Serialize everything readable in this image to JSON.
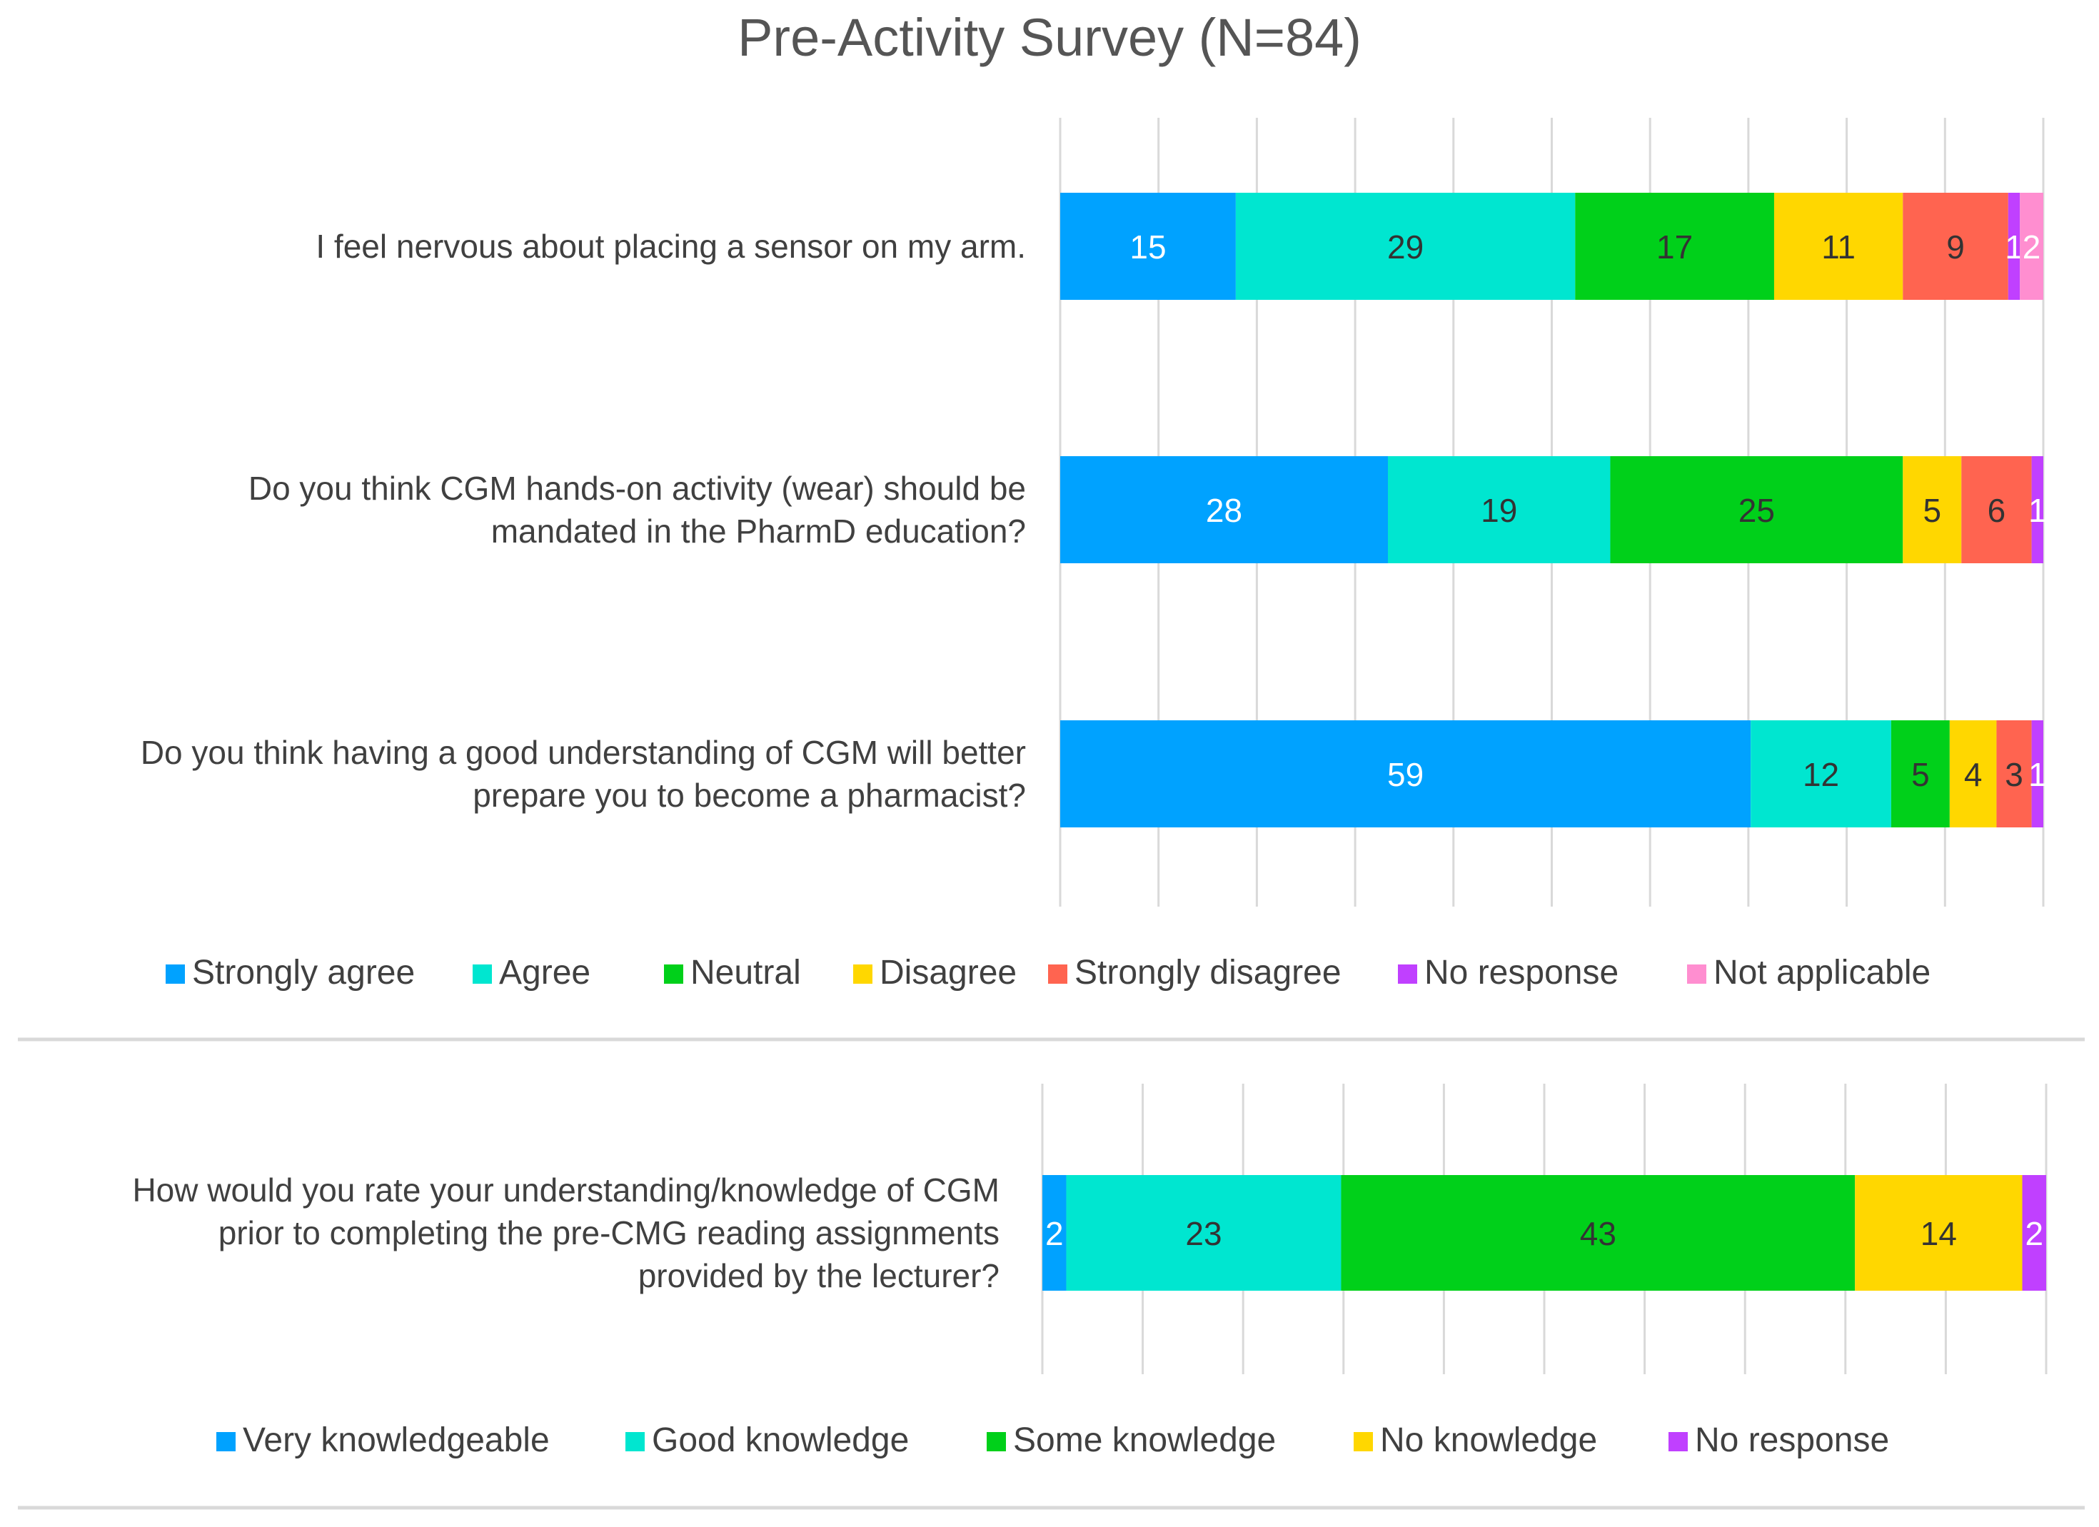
{
  "title": "Pre-Activity Survey (N=84)",
  "chart_data": [
    {
      "type": "bar",
      "orientation": "horizontal",
      "stacked": true,
      "grid": true,
      "legend_position": "bottom",
      "categories": [
        [
          "I feel nervous about placing a sensor on my arm."
        ],
        [
          "Do you think CGM hands-on activity (wear) should be",
          "mandated in the PharmD education?"
        ],
        [
          "Do you think having a good understanding of CGM will better",
          "prepare you to become a pharmacist?"
        ]
      ],
      "series": [
        {
          "name": "Strongly agree",
          "color": "#00A2FF",
          "values": [
            15,
            28,
            59
          ],
          "label_color": "#ffffff"
        },
        {
          "name": "Agree",
          "color": "#00E6D0",
          "values": [
            29,
            19,
            12
          ],
          "label_color": "#333333"
        },
        {
          "name": "Neutral",
          "color": "#00D01A",
          "values": [
            17,
            25,
            5
          ],
          "label_color": "#333333"
        },
        {
          "name": "Disagree",
          "color": "#FFD700",
          "values": [
            11,
            5,
            4
          ],
          "label_color": "#333333"
        },
        {
          "name": "Strongly disagree",
          "color": "#FF6450",
          "values": [
            9,
            6,
            3
          ],
          "label_color": "#333333"
        },
        {
          "name": "No response",
          "color": "#C040FF",
          "values": [
            1,
            1,
            1
          ],
          "label_color": "#ffffff"
        },
        {
          "name": "Not applicable",
          "color": "#FF8ED0",
          "values": [
            2,
            0,
            0
          ],
          "label_color": "#ffffff"
        }
      ]
    },
    {
      "type": "bar",
      "orientation": "horizontal",
      "stacked": true,
      "grid": true,
      "legend_position": "bottom",
      "categories": [
        [
          "How would you rate your understanding/knowledge of CGM",
          "prior to completing the pre-CMG reading assignments",
          "provided by the lecturer?"
        ]
      ],
      "series": [
        {
          "name": "Very knowledgeable",
          "color": "#00A2FF",
          "values": [
            2
          ],
          "label_color": "#ffffff"
        },
        {
          "name": "Good knowledge",
          "color": "#00E6D0",
          "values": [
            23
          ],
          "label_color": "#333333"
        },
        {
          "name": "Some knowledge",
          "color": "#00D01A",
          "values": [
            43
          ],
          "label_color": "#333333"
        },
        {
          "name": "No knowledge",
          "color": "#FFD700",
          "values": [
            14
          ],
          "label_color": "#333333"
        },
        {
          "name": "No response",
          "color": "#C040FF",
          "values": [
            2
          ],
          "label_color": "#ffffff"
        }
      ]
    }
  ]
}
